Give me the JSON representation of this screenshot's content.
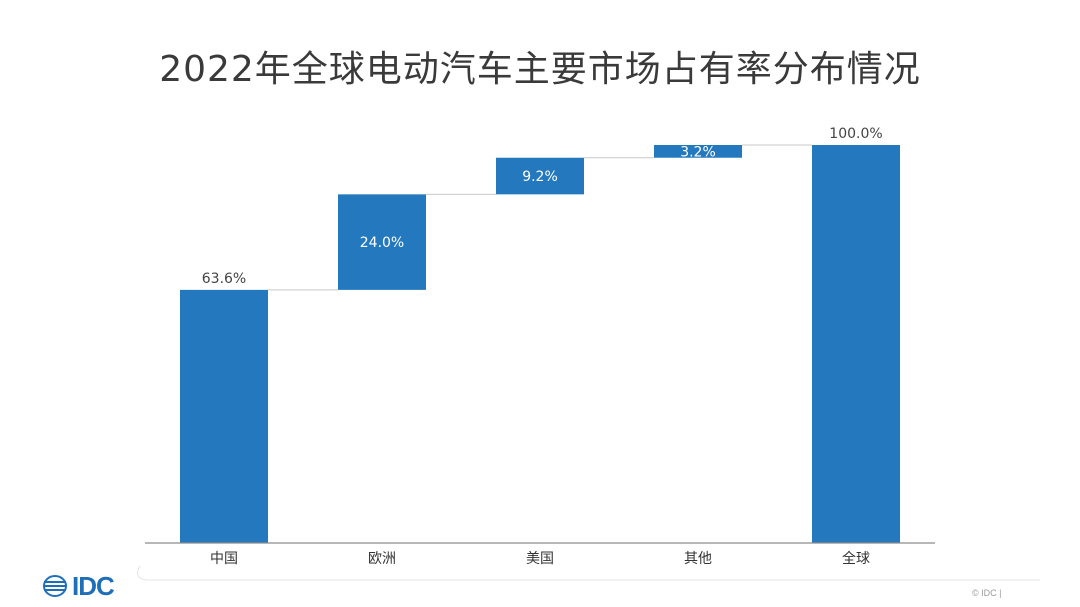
{
  "page": {
    "title": "2022年全球电动汽车主要市场占有率分布情况",
    "footer": {
      "logo_text": "IDC",
      "copyright": "© IDC |"
    }
  },
  "chart_data": {
    "type": "bar",
    "subtype": "waterfall",
    "title": "2022年全球电动汽车主要市场占有率分布情况",
    "categories": [
      "中国",
      "欧洲",
      "美国",
      "其他",
      "全球"
    ],
    "values": [
      63.6,
      24.0,
      9.2,
      3.2,
      100.0
    ],
    "labels": [
      "63.6%",
      "24.0%",
      "9.2%",
      "3.2%",
      "100.0%"
    ],
    "kinds": [
      "total",
      "increment",
      "increment",
      "increment",
      "total"
    ],
    "ylim": [
      0,
      100
    ],
    "grid": false,
    "legend": "none",
    "xlabel": "",
    "ylabel": "",
    "colors": {
      "bar": "#2478BD",
      "label_outside": "#444444",
      "label_inside": "#ffffff",
      "axis": "#8c8c8c",
      "connector": "#c8c8c8"
    }
  }
}
